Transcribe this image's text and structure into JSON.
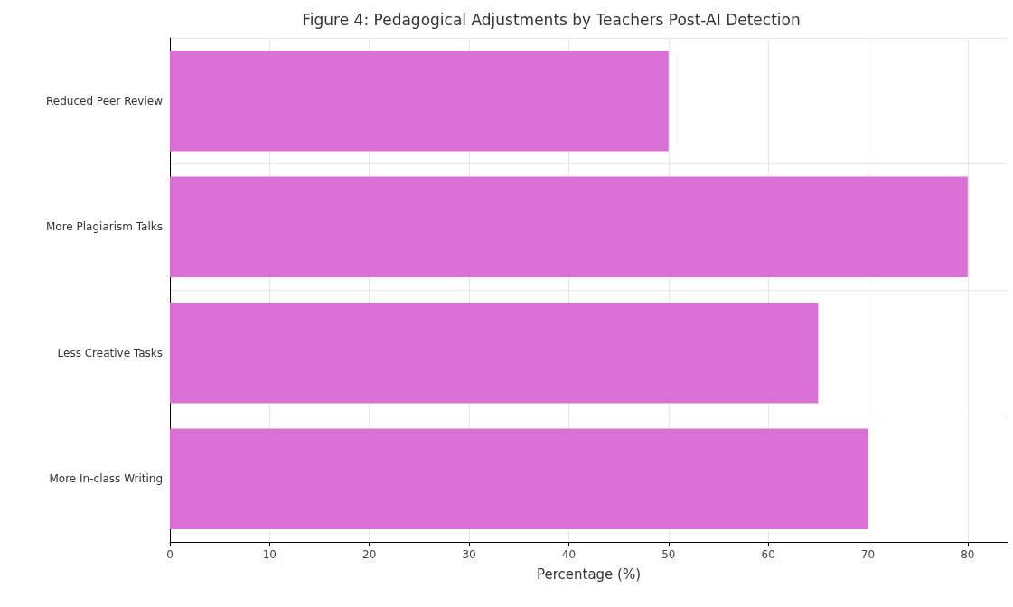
{
  "chart_data": {
    "type": "bar",
    "orientation": "horizontal",
    "title": "Figure 4: Pedagogical Adjustments by Teachers Post-AI Detection",
    "xlabel": "Percentage (%)",
    "categories": [
      "Reduced Peer Review",
      "More Plagiarism Talks",
      "Less Creative Tasks",
      "More In-class Writing"
    ],
    "values": [
      50,
      80,
      65,
      70
    ],
    "color": "#da70d6",
    "xlim": [
      0,
      84
    ],
    "xticks": [
      0,
      10,
      20,
      30,
      40,
      50,
      60,
      70,
      80
    ],
    "grid": true
  }
}
